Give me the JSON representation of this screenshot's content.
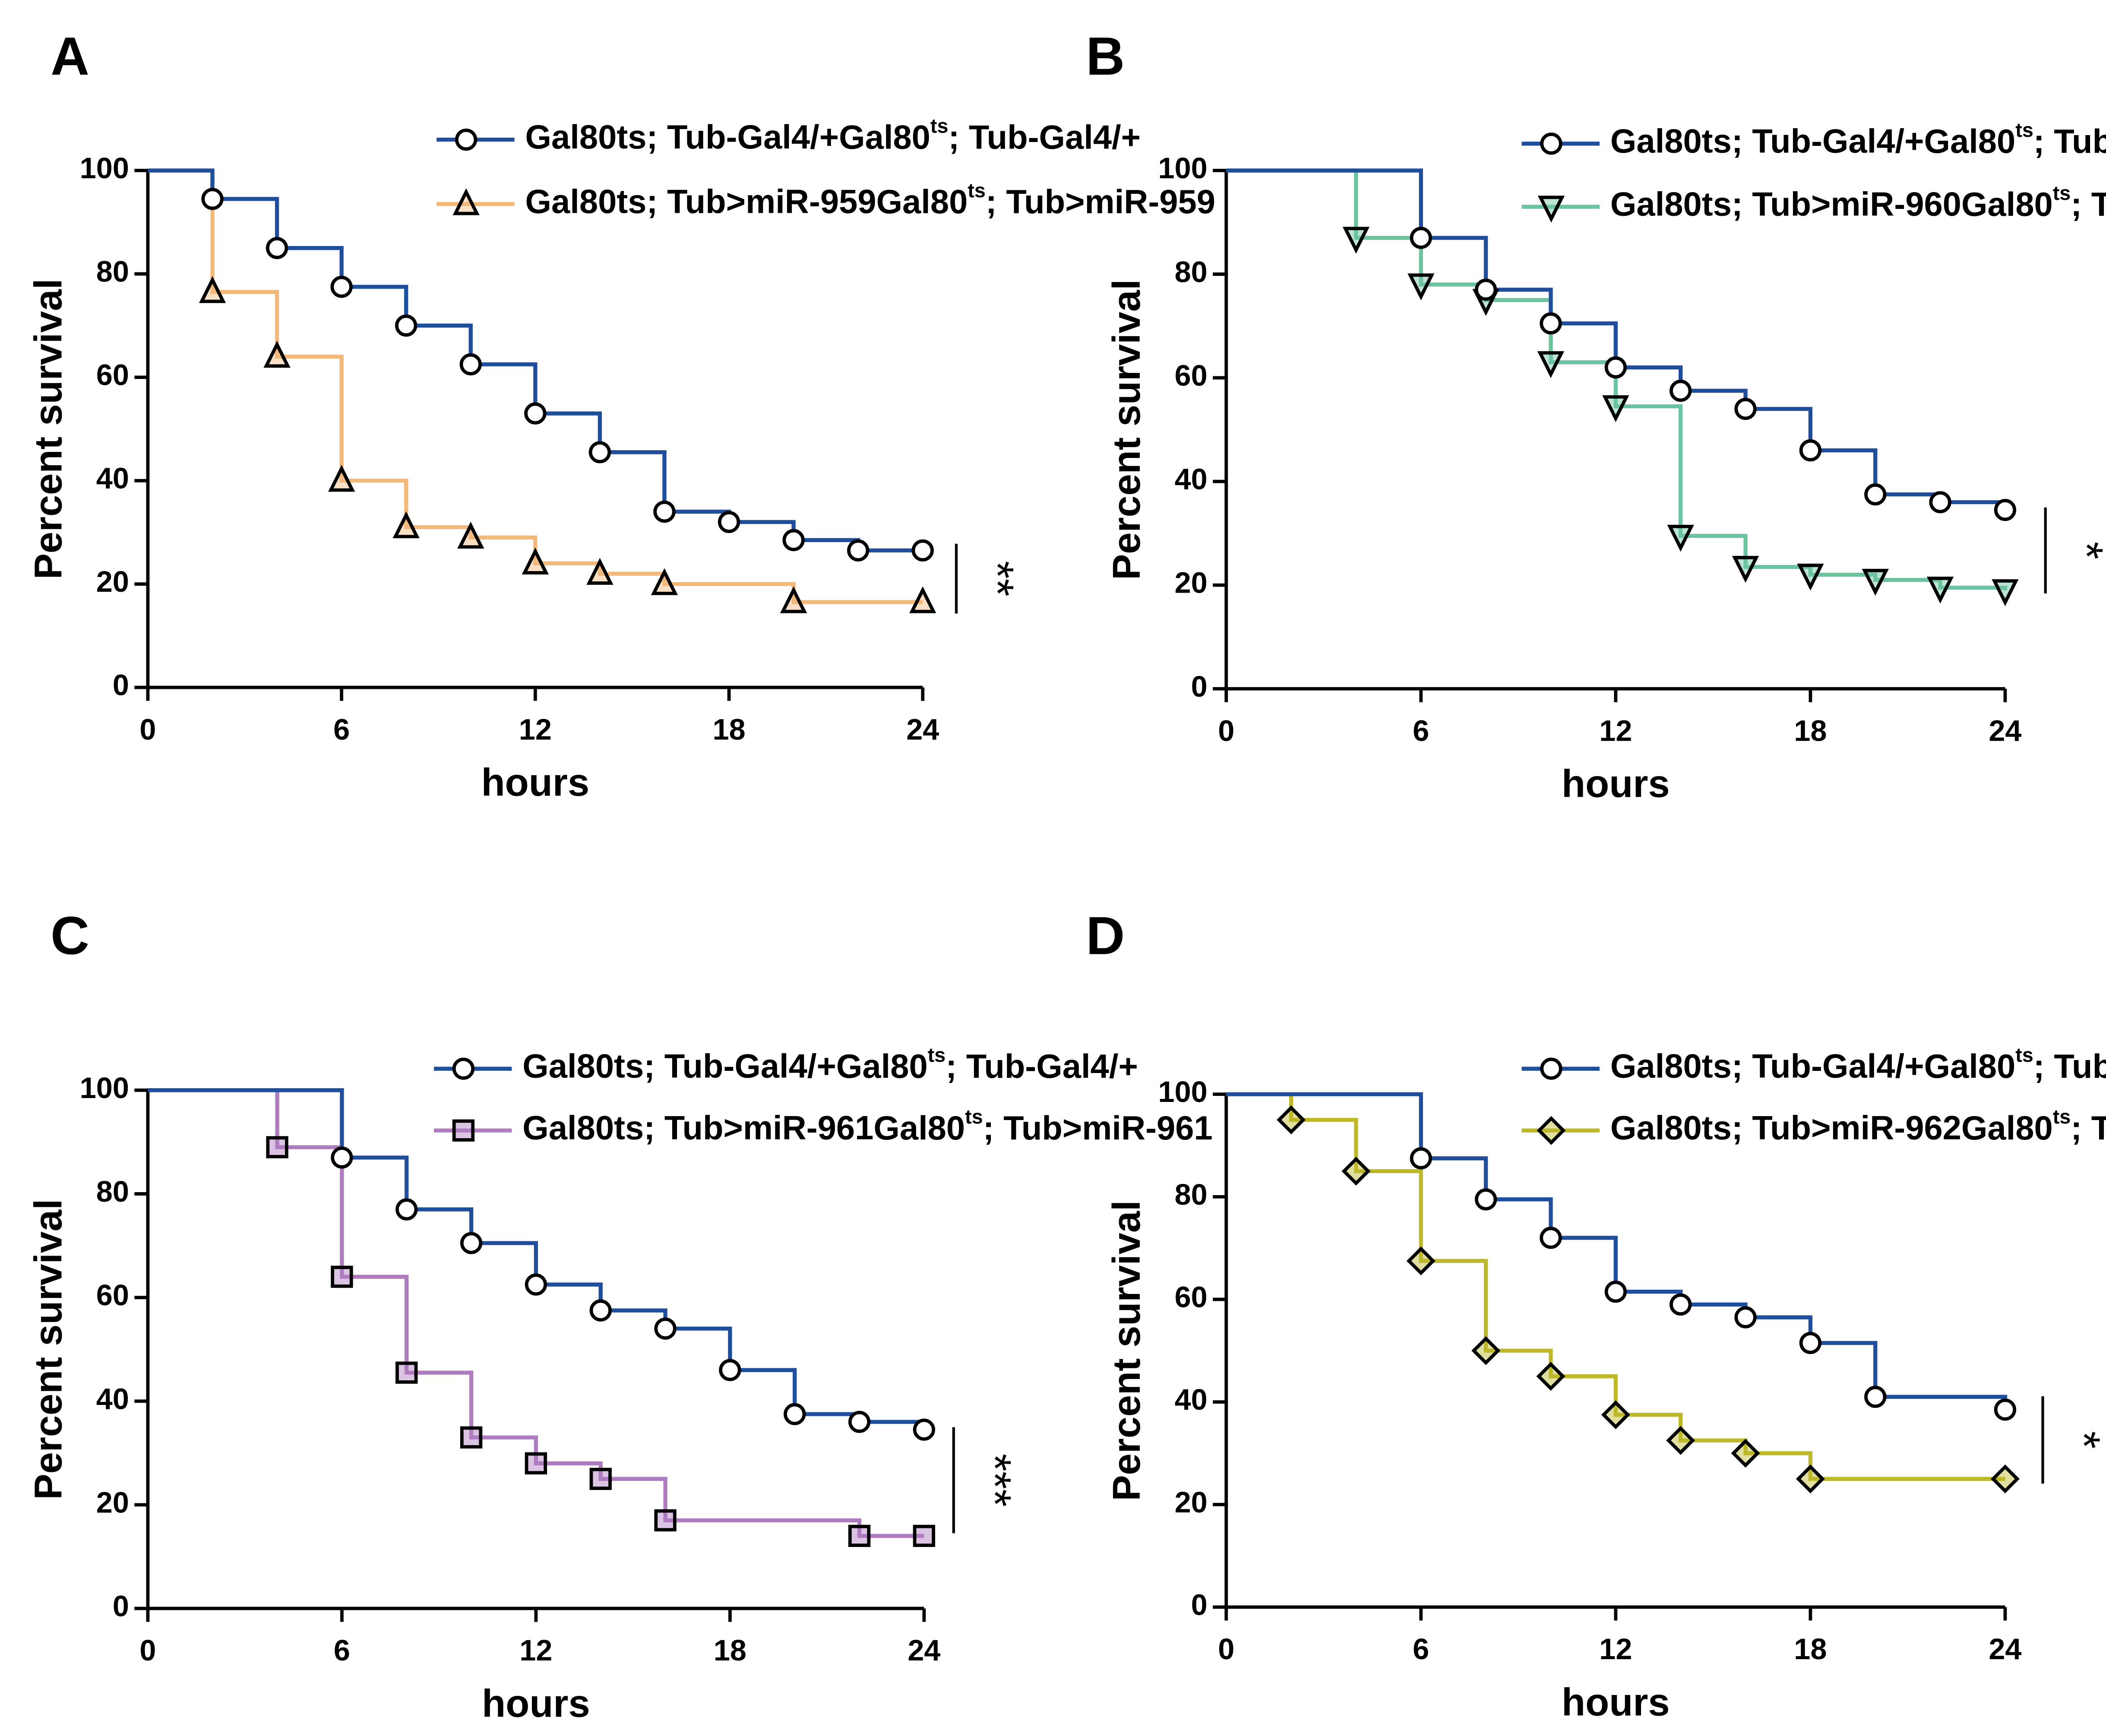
{
  "chart_data": [
    {
      "type": "step",
      "label": "A",
      "xlabel": "hours",
      "ylabel": "Percent survival",
      "xlim": [
        0,
        24
      ],
      "ylim": [
        0,
        100
      ],
      "xticks": [
        0,
        6,
        12,
        18,
        24
      ],
      "yticks": [
        0,
        20,
        40,
        60,
        80,
        100
      ],
      "annotation": "**",
      "series": [
        {
          "name": "Gal80ts; Tub-Gal4/+",
          "color": "#1f4e9c",
          "marker": "circle",
          "x": [
            0,
            2,
            4,
            6,
            8,
            10,
            12,
            14,
            16,
            18,
            20,
            22,
            24
          ],
          "values": [
            100,
            94.5,
            85,
            77.5,
            70,
            62.5,
            53,
            45.5,
            34,
            32,
            28.5,
            26.5,
            26.5
          ]
        },
        {
          "name": "Gal80ts; Tub>miR-959",
          "color": "#f2b97a",
          "marker": "triangle-up",
          "x": [
            0,
            2,
            4,
            6,
            8,
            10,
            12,
            14,
            16,
            20,
            24
          ],
          "values": [
            100,
            76.5,
            64,
            40,
            31,
            29,
            24,
            22,
            20,
            16.5,
            16.5
          ]
        }
      ]
    },
    {
      "type": "step",
      "label": "B",
      "xlabel": "hours",
      "ylabel": "Percent survival",
      "xlim": [
        0,
        24
      ],
      "ylim": [
        0,
        100
      ],
      "xticks": [
        0,
        6,
        12,
        18,
        24
      ],
      "yticks": [
        0,
        20,
        40,
        60,
        80,
        100
      ],
      "annotation": "*",
      "series": [
        {
          "name": "Gal80ts; Tub-Gal4/+",
          "color": "#1f4e9c",
          "marker": "circle",
          "x": [
            0,
            6,
            8,
            10,
            12,
            14,
            16,
            18,
            20,
            22,
            24
          ],
          "values": [
            100,
            87,
            77,
            70.5,
            62,
            57.5,
            54,
            46,
            37.5,
            36,
            34.5
          ]
        },
        {
          "name": "Gal80ts; Tub>miR-960",
          "color": "#6cc3a0",
          "marker": "triangle-down",
          "x": [
            0,
            4,
            6,
            8,
            10,
            12,
            14,
            16,
            18,
            20,
            22,
            24
          ],
          "values": [
            100,
            87,
            78,
            75,
            63,
            54.5,
            29.5,
            23.5,
            22,
            21,
            19.5,
            19
          ]
        }
      ]
    },
    {
      "type": "step",
      "label": "C",
      "xlabel": "hours",
      "ylabel": "Percent survival",
      "xlim": [
        0,
        24
      ],
      "ylim": [
        0,
        100
      ],
      "xticks": [
        0,
        6,
        12,
        18,
        24
      ],
      "yticks": [
        0,
        20,
        40,
        60,
        80,
        100
      ],
      "annotation": "***",
      "series": [
        {
          "name": "Gal80ts; Tub-Gal4/+",
          "color": "#1f4e9c",
          "marker": "circle",
          "x": [
            0,
            6,
            8,
            10,
            12,
            14,
            16,
            18,
            20,
            22,
            24
          ],
          "values": [
            100,
            87,
            77,
            70.5,
            62.5,
            57.5,
            54,
            46,
            37.5,
            36,
            34.5
          ]
        },
        {
          "name": "Gal80ts; Tub>miR-961",
          "color": "#b07cc0",
          "marker": "square",
          "x": [
            0,
            4,
            6,
            8,
            10,
            12,
            14,
            16,
            22,
            24
          ],
          "values": [
            100,
            89,
            64,
            45.5,
            33,
            28,
            25,
            17,
            14,
            14
          ]
        }
      ]
    },
    {
      "type": "step",
      "label": "D",
      "xlabel": "hours",
      "ylabel": "Percent survival",
      "xlim": [
        0,
        24
      ],
      "ylim": [
        0,
        100
      ],
      "xticks": [
        0,
        6,
        12,
        18,
        24
      ],
      "yticks": [
        0,
        20,
        40,
        60,
        80,
        100
      ],
      "annotation": "*",
      "series": [
        {
          "name": "Gal80ts; Tub-Gal4/+",
          "color": "#1f4e9c",
          "marker": "circle",
          "x": [
            0,
            6,
            8,
            10,
            12,
            14,
            16,
            18,
            20,
            24
          ],
          "values": [
            100,
            87.5,
            79.5,
            72,
            61.5,
            59,
            56.5,
            51.5,
            41,
            38.5
          ]
        },
        {
          "name": "Gal80ts; Tub>miR-962",
          "color": "#bdb92a",
          "marker": "diamond",
          "x": [
            0,
            2,
            4,
            6,
            8,
            10,
            12,
            14,
            16,
            18,
            24
          ],
          "values": [
            100,
            95,
            85,
            67.5,
            50,
            45,
            37.5,
            32.5,
            30,
            25,
            25
          ]
        }
      ]
    }
  ]
}
